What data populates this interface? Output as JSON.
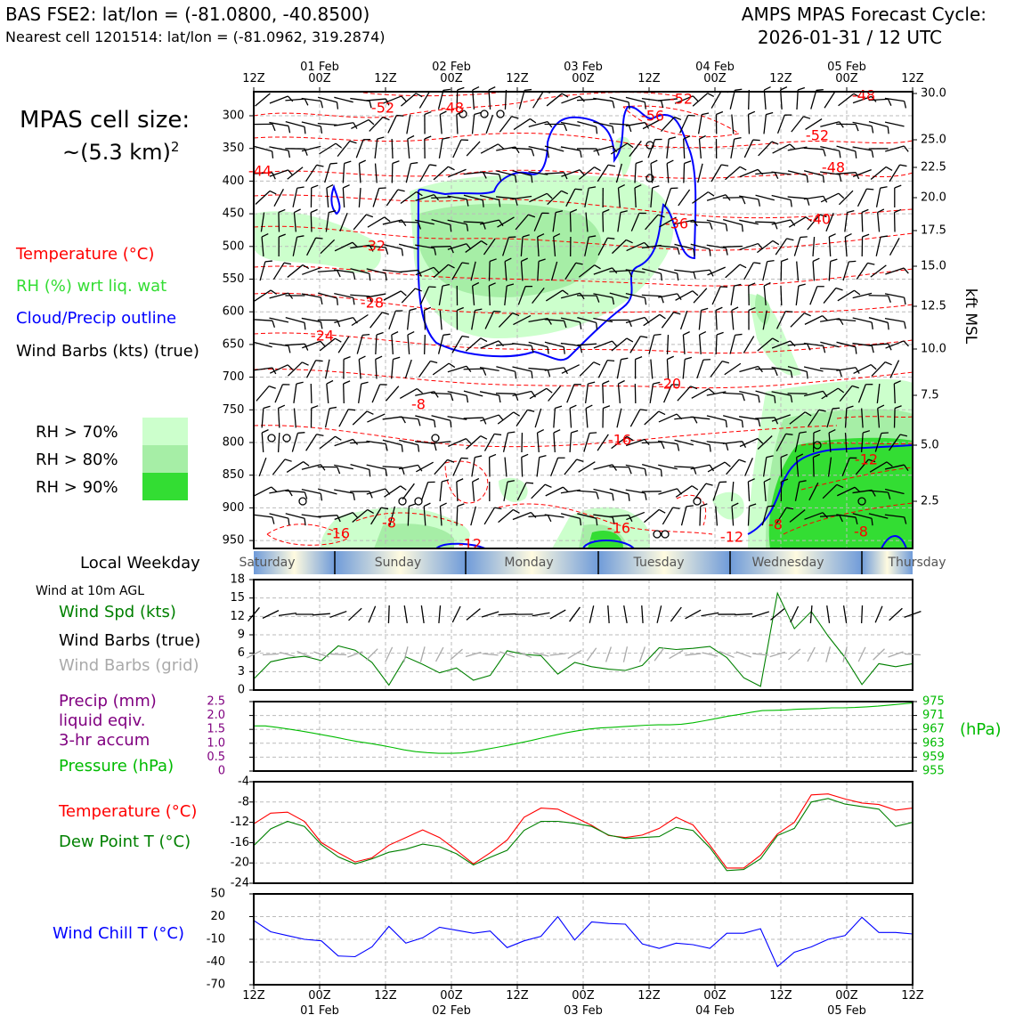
{
  "header": {
    "station_line": "BAS FSE2: lat/lon = (-81.0800, -40.8500)",
    "nearest_line": "Nearest cell 1201514: lat/lon = (-81.0962, 319.2874)",
    "model_title": "AMPS MPAS Forecast Cycle:",
    "cycle": "2026-01-31 / 12 UTC"
  },
  "cell_size": {
    "line1": "MPAS cell size:",
    "line2": "~(5.3 km)",
    "exp": "2"
  },
  "legend": {
    "temperature": "Temperature (°C)",
    "rh": "RH (%) wrt liq. wat",
    "cloud": "Cloud/Precip outline",
    "barbs": "Wind Barbs (kts) (true)",
    "rh70": "RH > 70%",
    "rh80": "RH > 80%",
    "rh90": "RH > 90%"
  },
  "colors": {
    "rh70": "#ccffcc",
    "rh80": "#a6eea6",
    "rh90": "#33dd33",
    "temp": "#ff0000",
    "cloud": "#0000ff",
    "wind": "#008000",
    "precip": "#800080",
    "pressure": "#00bb00",
    "chill": "#0000ff"
  },
  "time_axis": {
    "hour_labels": [
      "12Z",
      "00Z",
      "12Z",
      "00Z",
      "12Z",
      "00Z",
      "12Z",
      "00Z",
      "12Z",
      "00Z",
      "12Z"
    ],
    "date_labels": [
      "01 Feb",
      "02 Feb",
      "03 Feb",
      "04 Feb",
      "05 Feb"
    ]
  },
  "weekday": {
    "title": "Local Weekday",
    "days": [
      "Saturday",
      "Sunday",
      "Monday",
      "Tuesday",
      "Wednesday",
      "Thursday"
    ]
  },
  "panel_wind": {
    "title": "Wind at 10m AGL",
    "speed_label": "Wind Spd (kts)",
    "barbs_true": "Wind Barbs (true)",
    "barbs_grid": "Wind Barbs (grid)"
  },
  "panel_precip": {
    "precip_l1": "Precip (mm)",
    "precip_l2": "liquid eqiv.",
    "precip_l3": "3-hr accum",
    "pressure_label": "Pressure (hPa)",
    "unit": "(hPa)"
  },
  "panel_temp": {
    "temp_label": "Temperature (°C)",
    "dew_label": "Dew Point T (°C)"
  },
  "panel_chill": {
    "label": "Wind Chill T (°C)"
  },
  "chart_data": [
    {
      "type": "heatmap",
      "title": "",
      "y_ticks_left": [
        "300",
        "350",
        "400",
        "450",
        "500",
        "550",
        "600",
        "650",
        "700",
        "750",
        "800",
        "850",
        "900",
        "950"
      ],
      "y_ticks_right": [
        "30.0",
        "25.0",
        "22.5",
        "20.0",
        "17.5",
        "15.0",
        "12.5",
        "10.0",
        "7.5",
        "5.0",
        "2.5"
      ],
      "ylabel_right": "kft MSL",
      "temp_contour_labels": [
        "-52",
        "-48",
        "-56",
        "-52",
        "-48",
        "-52",
        "-48",
        "-40",
        "-36",
        "-44",
        "-32",
        "-28",
        "-24",
        "-20",
        "-16",
        "-12",
        "-16",
        "-8",
        "-12",
        "-16",
        "-12",
        "-8",
        "-8",
        "-8"
      ]
    },
    {
      "type": "line",
      "ylim": [
        0,
        18
      ],
      "y_ticks": [
        "0",
        "3",
        "6",
        "9",
        "12",
        "15",
        "18"
      ],
      "series": [
        {
          "name": "Wind Spd (kts)",
          "values": [
            1.8,
            4.6,
            5.2,
            5.5,
            4.8,
            7.2,
            6.5,
            4.5,
            0.8,
            5.4,
            4.2,
            2.8,
            3.6,
            1.6,
            2.4,
            6.4,
            5.8,
            5.6,
            2.6,
            4.5,
            3.8,
            3.4,
            3.2,
            4.0,
            6.9,
            6.6,
            6.8,
            7.1,
            5.3,
            2.0,
            0.6,
            15.8,
            10.0,
            12.8,
            8.8,
            5.3,
            0.9,
            4.3,
            3.8,
            4.3
          ]
        }
      ]
    },
    {
      "type": "line",
      "ylim": [
        955,
        975
      ],
      "y_ticks_left": [
        "0",
        "0.5",
        "1.0",
        "1.5",
        "2.0",
        "2.5"
      ],
      "y_ticks_right": [
        "955",
        "959",
        "963",
        "967",
        "971",
        "975"
      ],
      "series": [
        {
          "name": "Pressure (hPa)",
          "values": [
            968.0,
            968.0,
            967.6,
            967.1,
            966.6,
            966.0,
            965.4,
            964.8,
            964.1,
            963.5,
            963.0,
            962.4,
            961.8,
            961.1,
            960.6,
            960.3,
            960.1,
            960.1,
            960.2,
            960.6,
            961.2,
            961.8,
            962.4,
            963.1,
            963.8,
            964.6,
            965.3,
            966.0,
            966.6,
            967.1,
            967.4,
            967.6,
            967.8,
            968.0,
            968.2,
            968.3,
            968.3,
            968.5,
            968.9,
            969.5,
            970.1,
            970.8,
            971.3,
            971.9,
            972.4,
            972.5,
            972.6,
            972.8,
            972.9,
            973.0,
            973.2,
            973.2,
            973.3,
            973.5,
            973.7,
            974.0,
            974.3,
            974.6
          ]
        }
      ]
    },
    {
      "type": "line",
      "ylim": [
        -24,
        -4
      ],
      "y_ticks": [
        "-4",
        "-8",
        "-12",
        "-16",
        "-20",
        "-24"
      ],
      "series": [
        {
          "name": "Temperature (°C)",
          "values": [
            -12.3,
            -10.2,
            -10.0,
            -11.8,
            -16.0,
            -18.0,
            -19.8,
            -19.0,
            -16.5,
            -15.0,
            -13.5,
            -15.0,
            -17.5,
            -20.2,
            -18.0,
            -15.5,
            -11.0,
            -9.2,
            -9.4,
            -11.0,
            -12.6,
            -14.6,
            -15.0,
            -14.5,
            -13.2,
            -11.0,
            -12.5,
            -16.5,
            -21.0,
            -21.0,
            -18.5,
            -14.3,
            -12.0,
            -6.6,
            -6.4,
            -7.4,
            -8.2,
            -8.5,
            -9.6,
            -9.2
          ]
        },
        {
          "name": "Dew Point T (°C)",
          "values": [
            -16.6,
            -13.3,
            -11.8,
            -12.8,
            -16.4,
            -18.8,
            -20.2,
            -19.2,
            -17.9,
            -17.3,
            -16.3,
            -16.8,
            -18.2,
            -20.4,
            -18.9,
            -17.5,
            -13.6,
            -11.8,
            -11.8,
            -12.2,
            -12.8,
            -14.5,
            -15.2,
            -15.0,
            -14.8,
            -13.0,
            -13.6,
            -17.0,
            -21.5,
            -21.3,
            -19.2,
            -14.6,
            -13.2,
            -8.0,
            -7.3,
            -8.4,
            -8.9,
            -9.4,
            -12.8,
            -12.0
          ]
        }
      ]
    },
    {
      "type": "line",
      "ylim": [
        -70,
        50
      ],
      "y_ticks": [
        "50",
        "20",
        "-10",
        "-40",
        "-70"
      ],
      "series": [
        {
          "name": "Wind Chill T (°C)",
          "values": [
            15,
            0,
            -5,
            -10,
            -12,
            -32,
            -33,
            -20,
            7,
            -15,
            -8,
            6,
            2,
            -2,
            1,
            -21,
            -12,
            -6,
            20,
            -11,
            13,
            11,
            10,
            -16,
            -22,
            -15,
            -17,
            -22,
            -2,
            -2,
            4,
            -46,
            -27,
            -20,
            -10,
            -5,
            19,
            -1,
            -1,
            -3
          ]
        }
      ]
    }
  ]
}
